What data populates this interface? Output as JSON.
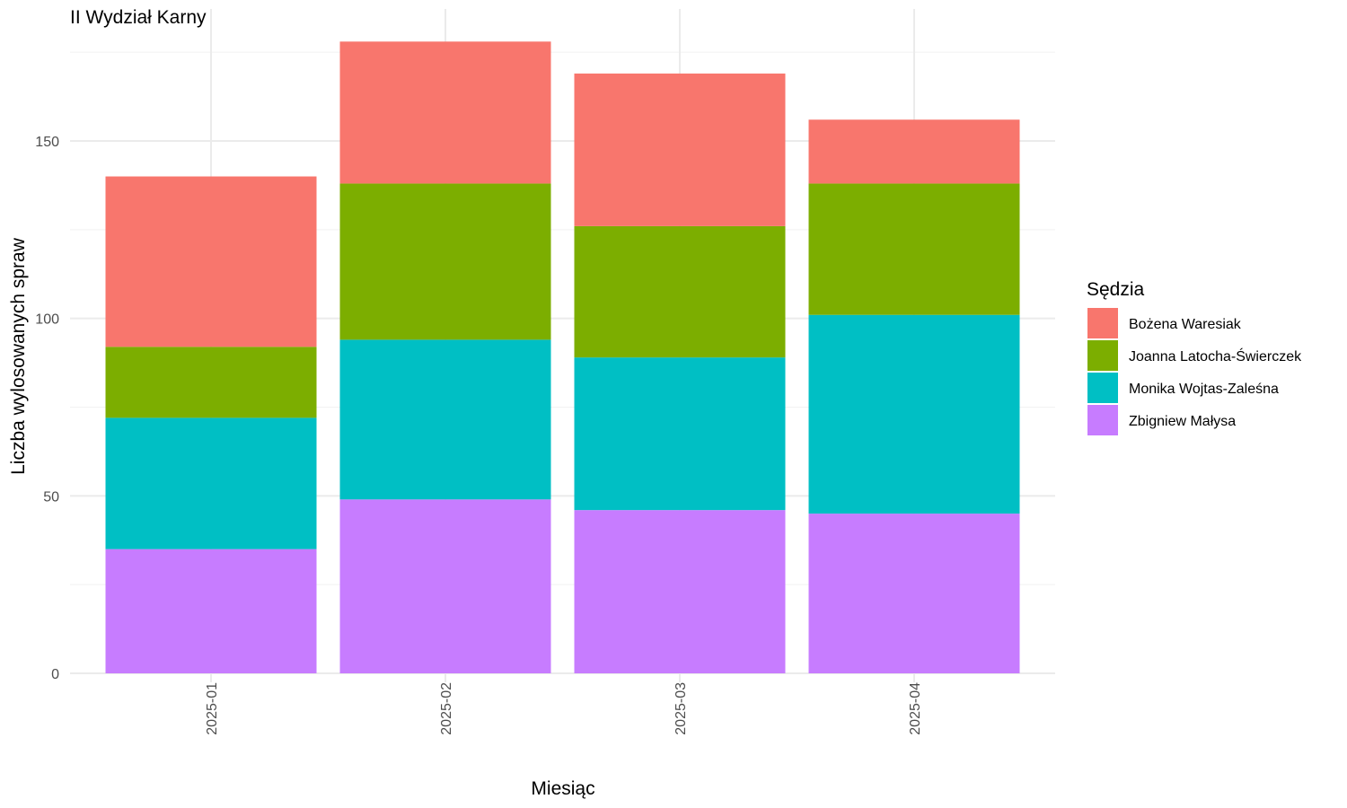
{
  "chart_data": {
    "type": "bar",
    "stacked": true,
    "title": "II Wydział Karny",
    "xlabel": "Miesiąc",
    "ylabel": "Liczba wylosowanych spraw",
    "categories": [
      "2025-01",
      "2025-02",
      "2025-03",
      "2025-04"
    ],
    "ylim": [
      0,
      178
    ],
    "yticks": [
      0,
      50,
      100,
      150
    ],
    "grid": true,
    "legend": {
      "title": "Sędzia",
      "position": "right"
    },
    "series": [
      {
        "name": "Zbigniew Małysa",
        "color": "#C77CFF",
        "values": [
          35,
          49,
          46,
          45
        ]
      },
      {
        "name": "Monika Wojtas-Zaleśna",
        "color": "#00BFC4",
        "values": [
          37,
          45,
          43,
          56
        ]
      },
      {
        "name": "Joanna Latocha-Świerczek",
        "color": "#7CAE00",
        "values": [
          20,
          44,
          37,
          37
        ]
      },
      {
        "name": "Bożena Waresiak",
        "color": "#F8766D",
        "values": [
          48,
          40,
          43,
          18
        ]
      }
    ],
    "legend_order": [
      "Bożena Waresiak",
      "Joanna Latocha-Świerczek",
      "Monika Wojtas-Zaleśna",
      "Zbigniew Małysa"
    ]
  }
}
